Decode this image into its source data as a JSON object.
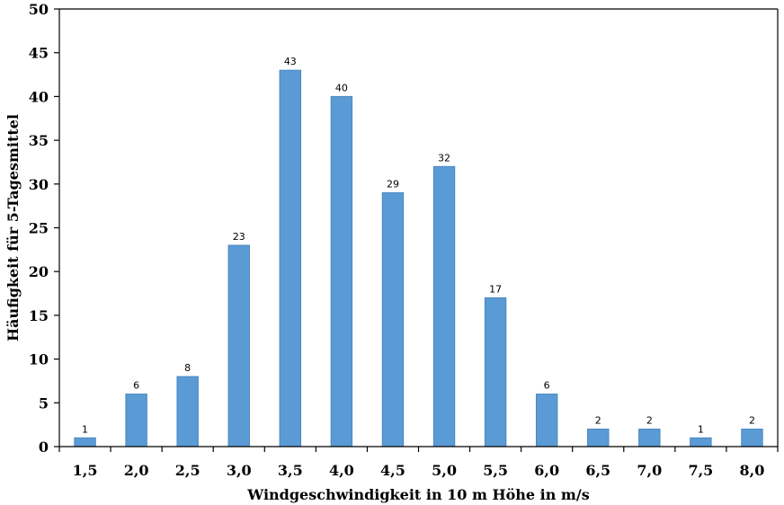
{
  "chart_data": {
    "type": "bar",
    "xlabel": "Windgeschwindigkeit in 10 m Höhe in m/s",
    "ylabel": "Häufigkeit für 5-Tagesmittel",
    "categories": [
      "1,5",
      "2,0",
      "2,5",
      "3,0",
      "3,5",
      "4,0",
      "4,5",
      "5,0",
      "5,5",
      "6,0",
      "6,5",
      "7,0",
      "7,5",
      "8,0"
    ],
    "values": [
      1,
      6,
      8,
      23,
      43,
      40,
      29,
      32,
      17,
      6,
      2,
      2,
      1,
      2
    ],
    "ylim": [
      0,
      50
    ],
    "yticks": [
      "0",
      "5",
      "10",
      "15",
      "20",
      "25",
      "30",
      "35",
      "40",
      "45",
      "50"
    ],
    "bar_color": "#5b9bd5",
    "bar_edge_color": "#4a86c0",
    "grid": false,
    "legend": "none"
  }
}
